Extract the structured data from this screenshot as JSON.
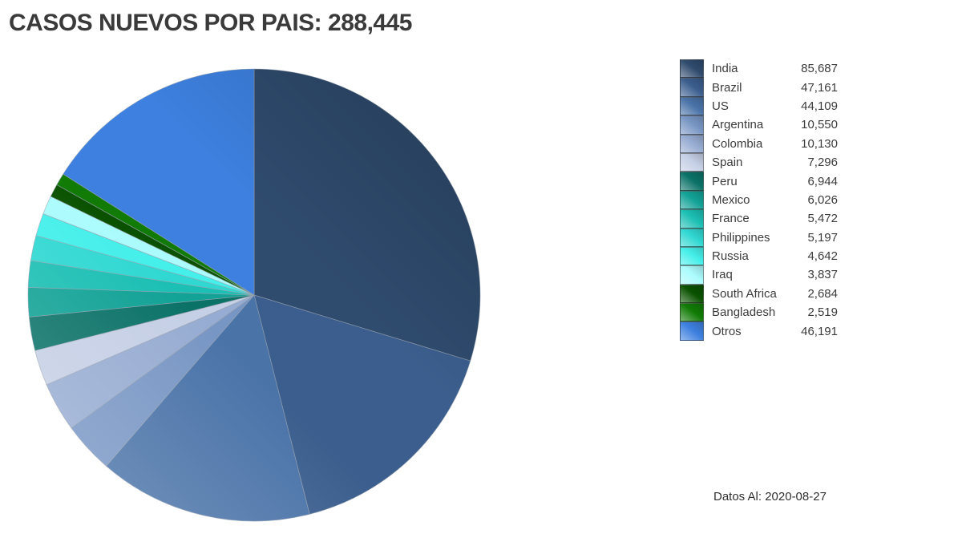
{
  "title": "CASOS NUEVOS POR PAIS: 288,445",
  "footer": "Datos Al: 2020-08-27",
  "chart_data": {
    "type": "pie",
    "title": "CASOS NUEVOS POR PAIS: 288,445",
    "total": 288445,
    "total_display": "288,445",
    "start_angle_deg": 0,
    "direction": "clockwise",
    "legend_position": "right",
    "series": [
      {
        "name": "India",
        "value": 85687,
        "value_display": "85,687",
        "color": "#2F4B6E"
      },
      {
        "name": "Brazil",
        "value": 47161,
        "value_display": "47,161",
        "color": "#3B5E8E"
      },
      {
        "name": "US",
        "value": 44109,
        "value_display": "44,109",
        "color": "#4A73A8"
      },
      {
        "name": "Argentina",
        "value": 10550,
        "value_display": "10,550",
        "color": "#7896C4"
      },
      {
        "name": "Colombia",
        "value": 10130,
        "value_display": "10,130",
        "color": "#97ACD2"
      },
      {
        "name": "Spain",
        "value": 7296,
        "value_display": "7,296",
        "color": "#C5CFE5"
      },
      {
        "name": "Peru",
        "value": 6944,
        "value_display": "6,944",
        "color": "#0B7268"
      },
      {
        "name": "Mexico",
        "value": 6026,
        "value_display": "6,026",
        "color": "#12A296"
      },
      {
        "name": "France",
        "value": 5472,
        "value_display": "5,472",
        "color": "#1CBFB4"
      },
      {
        "name": "Philippines",
        "value": 5197,
        "value_display": "5,197",
        "color": "#31D8D2"
      },
      {
        "name": "Russia",
        "value": 4642,
        "value_display": "4,642",
        "color": "#45EFEA"
      },
      {
        "name": "Iraq",
        "value": 3837,
        "value_display": "3,837",
        "color": "#ABFBFD"
      },
      {
        "name": "South Africa",
        "value": 2684,
        "value_display": "2,684",
        "color": "#0A5200"
      },
      {
        "name": "Bangladesh",
        "value": 2519,
        "value_display": "2,519",
        "color": "#117B06"
      },
      {
        "name": "Otros",
        "value": 46191,
        "value_display": "46,191",
        "color": "#3D80DF"
      }
    ]
  }
}
